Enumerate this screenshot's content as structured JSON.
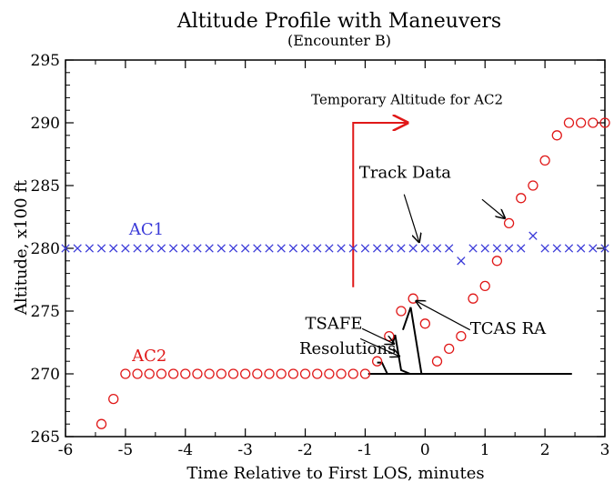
{
  "chart_data": {
    "type": "scatter",
    "title": "Altitude Profile with Maneuvers",
    "subtitle": "(Encounter B)",
    "xlabel": "Time Relative to First LOS, minutes",
    "ylabel": "Altitude, x100 ft",
    "xlim": [
      -6,
      3
    ],
    "ylim": [
      265,
      295
    ],
    "xticks": [
      -6,
      -5,
      -4,
      -3,
      -2,
      -1,
      0,
      1,
      2,
      3
    ],
    "yticks": [
      265,
      270,
      275,
      280,
      285,
      290,
      295
    ],
    "grid": false,
    "series": [
      {
        "name": "AC1",
        "marker": "x",
        "color": "#3a3ad8",
        "x": [
          -6.0,
          -5.8,
          -5.6,
          -5.4,
          -5.2,
          -5.0,
          -4.8,
          -4.6,
          -4.4,
          -4.2,
          -4.0,
          -3.8,
          -3.6,
          -3.4,
          -3.2,
          -3.0,
          -2.8,
          -2.6,
          -2.4,
          -2.2,
          -2.0,
          -1.8,
          -1.6,
          -1.4,
          -1.2,
          -1.0,
          -0.8,
          -0.6,
          -0.4,
          -0.2,
          0.0,
          0.2,
          0.4,
          0.6,
          0.8,
          1.0,
          1.2,
          1.4,
          1.6,
          1.8,
          2.0,
          2.2,
          2.4,
          2.6,
          2.8,
          3.0
        ],
        "y": [
          280,
          280,
          280,
          280,
          280,
          280,
          280,
          280,
          280,
          280,
          280,
          280,
          280,
          280,
          280,
          280,
          280,
          280,
          280,
          280,
          280,
          280,
          280,
          280,
          280,
          280,
          280,
          280,
          280,
          280,
          280,
          280,
          280,
          279,
          280,
          280,
          280,
          280,
          280,
          281,
          280,
          280,
          280,
          280,
          280,
          280
        ]
      },
      {
        "name": "AC2",
        "marker": "o",
        "color": "#e01818",
        "x": [
          -5.4,
          -5.2,
          -5.0,
          -4.8,
          -4.6,
          -4.4,
          -4.2,
          -4.0,
          -3.8,
          -3.6,
          -3.4,
          -3.2,
          -3.0,
          -2.8,
          -2.6,
          -2.4,
          -2.2,
          -2.0,
          -1.8,
          -1.6,
          -1.4,
          -1.2,
          -1.0,
          -0.8,
          -0.6,
          -0.4,
          -0.2,
          0.0,
          0.2,
          0.4,
          0.6,
          0.8,
          1.0,
          1.2,
          1.4,
          1.6,
          1.8,
          2.0,
          2.2,
          2.4,
          2.6,
          2.8,
          3.0
        ],
        "y": [
          266,
          268,
          270,
          270,
          270,
          270,
          270,
          270,
          270,
          270,
          270,
          270,
          270,
          270,
          270,
          270,
          270,
          270,
          270,
          270,
          270,
          270,
          270,
          271,
          273,
          275,
          276,
          274,
          271,
          272,
          273,
          276,
          277,
          279,
          282,
          284,
          285,
          287,
          289,
          290,
          290,
          290,
          290
        ]
      }
    ],
    "series_labels": [
      {
        "text": "AC1",
        "color": "#3a3ad8",
        "x": -4.65,
        "y": 281.1
      },
      {
        "text": "AC2",
        "color": "#e01818",
        "x": -4.6,
        "y": 271.0
      }
    ],
    "temporary_altitude": {
      "label": "Temporary Altitude for AC2",
      "color": "#e01818",
      "path": [
        [
          -1.2,
          276.9
        ],
        [
          -1.2,
          290.0
        ],
        [
          -0.3,
          290.0
        ]
      ],
      "label_at": [
        -1.9,
        291.5
      ]
    },
    "resolutions": [
      {
        "path": [
          [
            -0.95,
            270.0
          ],
          [
            2.45,
            270.0
          ]
        ]
      },
      {
        "path": [
          [
            -0.8,
            270.9
          ],
          [
            -0.72,
            270.9
          ],
          [
            -0.63,
            270.0
          ]
        ]
      },
      {
        "path": [
          [
            -0.55,
            272.3
          ],
          [
            -0.5,
            273.1
          ],
          [
            -0.4,
            270.3
          ],
          [
            -0.25,
            270.0
          ]
        ]
      },
      {
        "path": [
          [
            -0.37,
            273.5
          ],
          [
            -0.24,
            275.3
          ],
          [
            -0.06,
            270.0
          ]
        ]
      }
    ],
    "annotations": [
      {
        "text": "Track Data",
        "x": -1.1,
        "y": 285.6,
        "class": "annot-lg"
      },
      {
        "text": "TSAFE",
        "x": -2.0,
        "y": 273.6,
        "class": "annot-lg"
      },
      {
        "text": "Resolutions",
        "x": -2.1,
        "y": 271.6,
        "class": "annot-lg"
      },
      {
        "text": "TCAS RA",
        "x": 0.75,
        "y": 273.2,
        "class": "annot-lg"
      }
    ],
    "arrows": [
      {
        "from": [
          -0.35,
          284.3
        ],
        "to": [
          -0.1,
          280.5
        ]
      },
      {
        "from": [
          0.95,
          283.9
        ],
        "to": [
          1.33,
          282.4
        ]
      },
      {
        "from": [
          -1.05,
          273.6
        ],
        "to": [
          -0.52,
          272.4
        ]
      },
      {
        "from": [
          -1.08,
          272.8
        ],
        "to": [
          -0.43,
          271.4
        ]
      },
      {
        "from": [
          0.75,
          273.5
        ],
        "to": [
          -0.15,
          275.8
        ]
      }
    ]
  }
}
